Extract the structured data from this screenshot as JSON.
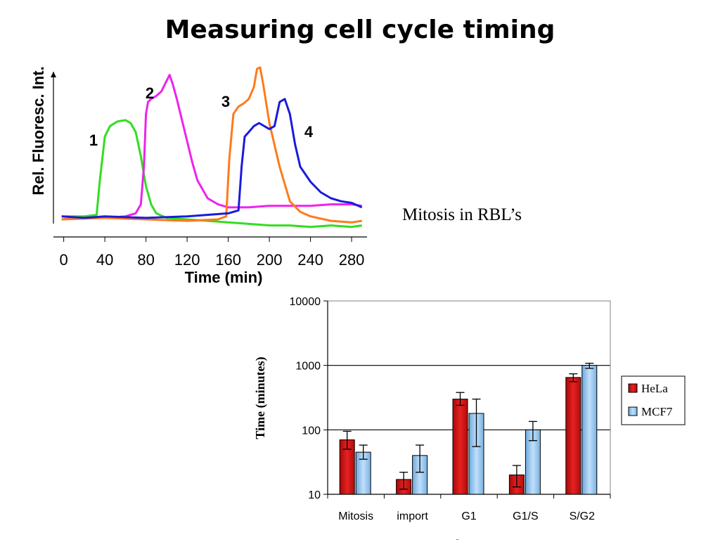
{
  "slide": {
    "title": "Measuring cell cycle timing",
    "caption": "Mitosis in RBL’s"
  },
  "chart_data": [
    {
      "type": "line",
      "xlabel": "Time (min)",
      "ylabel": "Rel. Fluoresc. Int.",
      "xlim": [
        -10,
        295
      ],
      "ylim": [
        0,
        1
      ],
      "x_ticks": [
        0,
        40,
        80,
        120,
        160,
        200,
        240,
        280
      ],
      "x_tick_labels": [
        "0",
        "40",
        "80",
        "120",
        "160",
        "200",
        "240",
        "280"
      ],
      "grid": false,
      "series": [
        {
          "label": "1",
          "color": "#33dd22",
          "x": [
            -2,
            20,
            32,
            35,
            40,
            45,
            52,
            60,
            65,
            70,
            75,
            80,
            85,
            90,
            100,
            120,
            140,
            160,
            180,
            200,
            220,
            240,
            260,
            280,
            290
          ],
          "y": [
            0.02,
            0.02,
            0.03,
            0.25,
            0.55,
            0.62,
            0.65,
            0.66,
            0.64,
            0.58,
            0.42,
            0.22,
            0.1,
            0.04,
            0.01,
            0.0,
            -0.01,
            -0.02,
            -0.03,
            -0.04,
            -0.04,
            -0.05,
            -0.04,
            -0.05,
            -0.04
          ]
        },
        {
          "label": "2",
          "color": "#ee22ee",
          "x": [
            -2,
            20,
            40,
            60,
            70,
            75,
            78,
            80,
            82,
            85,
            90,
            95,
            100,
            103,
            106,
            110,
            115,
            120,
            125,
            130,
            140,
            150,
            160,
            180,
            200,
            220,
            240,
            260,
            280,
            290
          ],
          "y": [
            0.0,
            0.01,
            0.01,
            0.02,
            0.04,
            0.1,
            0.35,
            0.7,
            0.78,
            0.8,
            0.82,
            0.85,
            0.92,
            0.96,
            0.9,
            0.8,
            0.66,
            0.52,
            0.38,
            0.26,
            0.14,
            0.1,
            0.08,
            0.08,
            0.09,
            0.09,
            0.09,
            0.1,
            0.1,
            0.09
          ]
        },
        {
          "label": "3",
          "color": "#ff7a1a",
          "x": [
            -2,
            40,
            80,
            120,
            150,
            158,
            161,
            165,
            170,
            175,
            180,
            185,
            188,
            191,
            194,
            200,
            210,
            220,
            230,
            240,
            260,
            280,
            290
          ],
          "y": [
            0.0,
            0.01,
            0.0,
            -0.01,
            0.0,
            0.02,
            0.4,
            0.7,
            0.75,
            0.77,
            0.8,
            0.88,
            1.0,
            1.01,
            0.9,
            0.64,
            0.35,
            0.12,
            0.05,
            0.02,
            -0.01,
            -0.02,
            -0.01
          ]
        },
        {
          "label": "4",
          "color": "#1a1adc",
          "x": [
            -2,
            20,
            40,
            80,
            120,
            160,
            170,
            173,
            176,
            180,
            185,
            190,
            200,
            205,
            210,
            215,
            220,
            225,
            230,
            240,
            250,
            260,
            270,
            280,
            290
          ],
          "y": [
            0.02,
            0.01,
            0.02,
            0.01,
            0.02,
            0.04,
            0.06,
            0.35,
            0.55,
            0.58,
            0.62,
            0.64,
            0.6,
            0.62,
            0.78,
            0.8,
            0.7,
            0.5,
            0.35,
            0.25,
            0.18,
            0.14,
            0.12,
            0.11,
            0.08
          ]
        }
      ]
    },
    {
      "type": "bar",
      "ylabel": "Time (minutes)",
      "xlabel": "Ph",
      "yscale": "log",
      "ylim": [
        10,
        10000
      ],
      "y_ticks": [
        10,
        100,
        1000,
        10000
      ],
      "y_tick_labels": [
        "10",
        "100",
        "1000",
        "10000"
      ],
      "gridlines_at": [
        100,
        1000
      ],
      "legend_position": "right",
      "categories": [
        "Mitosis",
        "import",
        "G1",
        "G1/S",
        "S/G2"
      ],
      "series": [
        {
          "name": "HeLa",
          "color": "#e01818",
          "values": [
            70,
            17,
            300,
            20,
            650
          ],
          "error_low": [
            50,
            12,
            240,
            13,
            560
          ],
          "error_high": [
            95,
            22,
            380,
            28,
            740
          ]
        },
        {
          "name": "MCF7",
          "color": "#9ccff5",
          "values": [
            45,
            40,
            180,
            100,
            1000
          ],
          "error_low": [
            35,
            22,
            55,
            68,
            900
          ],
          "error_high": [
            58,
            58,
            300,
            135,
            1080
          ]
        }
      ]
    }
  ]
}
